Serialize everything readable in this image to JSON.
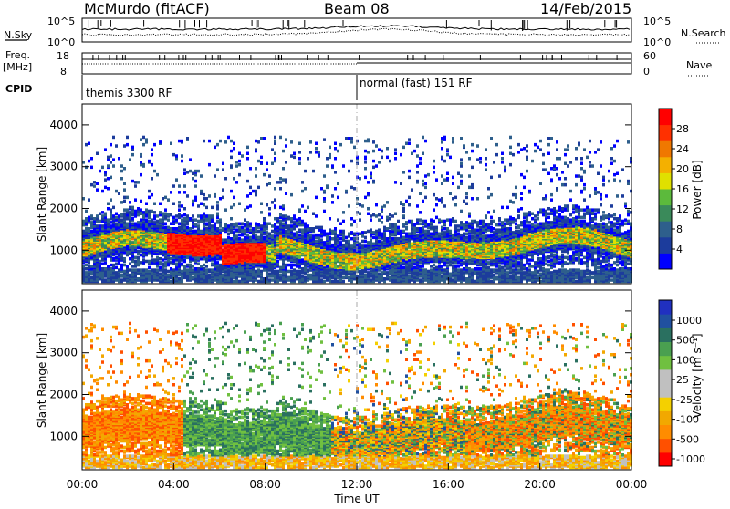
{
  "header": {
    "station": "McMurdo (fitACF)",
    "beam": "Beam 08",
    "date": "14/Feb/2015"
  },
  "top_panels": {
    "nsky_label": "N.Sky",
    "nsky_ticks": [
      "10^5",
      "10^0"
    ],
    "nsearch_label": "N.Search",
    "nsearch_ticks": [
      "10^5",
      "10^0"
    ],
    "freq_label": "Freq.",
    "freq_unit": "[MHz]",
    "freq_ticks": [
      "18",
      "8"
    ],
    "nave_label": "Nave",
    "nave_ticks": [
      "60",
      "0"
    ],
    "cpid_label": "CPID",
    "cpid_segments": [
      "themis 3300 RF",
      "normal (fast) 151 RF"
    ]
  },
  "colors": {
    "power_scale": [
      "#0000ff",
      "#1c3c9c",
      "#2e5f8c",
      "#3a8a5a",
      "#5cba3c",
      "#e0e000",
      "#f4b000",
      "#f07800",
      "#ff3000",
      "#ff0000"
    ],
    "velocity_scale": [
      "#ff0000",
      "#ff5000",
      "#ff8c00",
      "#f2a800",
      "#f4d000",
      "#c0c0c0",
      "#c0c0c0",
      "#70c040",
      "#4aa050",
      "#2a7060",
      "#2050a0",
      "#2030c0"
    ]
  },
  "chart_data": [
    {
      "type": "heatmap",
      "name": "power",
      "ylabel": "Slant Range [km]",
      "xlabel": "",
      "yticks": [
        "1000",
        "2000",
        "3000",
        "4000"
      ],
      "ylim": [
        200,
        4500
      ],
      "xlim": [
        "00:00",
        "24:00"
      ],
      "colorbar_label": "Power [dB]",
      "colorbar_ticks": [
        "4",
        "8",
        "12",
        "16",
        "20",
        "24",
        "28"
      ],
      "colorbar_range": [
        0,
        30
      ]
    },
    {
      "type": "heatmap",
      "name": "velocity",
      "ylabel": "Slant Range [km]",
      "xlabel": "Time UT",
      "yticks": [
        "1000",
        "2000",
        "3000",
        "4000"
      ],
      "ylim": [
        200,
        4500
      ],
      "xticks": [
        "00:00",
        "04:00",
        "08:00",
        "12:00",
        "16:00",
        "20:00",
        "00:00"
      ],
      "colorbar_label": "Velocity [m s⁻¹]",
      "colorbar_ticks": [
        "1000",
        "500",
        "100",
        "25",
        "-25",
        "-100",
        "-500",
        "-1000"
      ]
    }
  ]
}
